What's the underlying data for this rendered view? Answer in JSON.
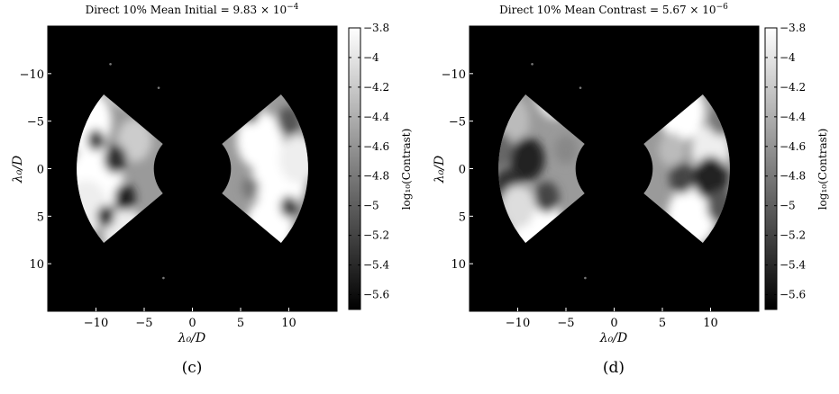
{
  "figure": {
    "panels": [
      {
        "id": "c",
        "title_prefix": "Direct 10% Mean Initial = 9.83 × 10",
        "title_exp": "−4",
        "caption": "(c)",
        "xlabel": "λ₀/D",
        "ylabel": "λ₀/D",
        "cblabel": "log₁₀(Contrast)"
      },
      {
        "id": "d",
        "title_prefix": "Direct 10% Mean Contrast = 5.67 × 10",
        "title_exp": "−6",
        "caption": "(d)",
        "xlabel": "λ₀/D",
        "ylabel": "λ₀/D",
        "cblabel": "log₁₀(Contrast)"
      }
    ]
  },
  "chart_data": [
    {
      "type": "heatmap",
      "title": "Direct 10% Mean Initial = 9.83 × 10^−4",
      "xlabel": "λ₀/D",
      "ylabel": "λ₀/D",
      "xlim": [
        -15,
        15
      ],
      "ylim": [
        15,
        -15
      ],
      "xticks": [
        -10,
        -5,
        0,
        5,
        10
      ],
      "xtick_labels": [
        "−10",
        "−5",
        "0",
        "5",
        "10"
      ],
      "yticks": [
        -10,
        -5,
        0,
        5,
        10
      ],
      "ytick_labels": [
        "−10",
        "−5",
        "0",
        "5",
        "10"
      ],
      "colorbar": {
        "label": "log₁₀(Contrast)",
        "range": [
          -5.7,
          -3.8
        ],
        "ticks": [
          -3.8,
          -4,
          -4.2,
          -4.4,
          -4.6,
          -4.8,
          -5,
          -5.2,
          -5.4,
          -5.6
        ],
        "tick_labels": [
          "−3.8",
          "−4",
          "−4.2",
          "−4.4",
          "−4.6",
          "−4.8",
          "−5",
          "−5.2",
          "−5.4",
          "−5.6"
        ]
      },
      "dark_hole": {
        "inner_radius": 4,
        "outer_radius": 12,
        "half_angle_deg": 40,
        "sides": [
          "left",
          "right"
        ]
      },
      "mean_contrast": 0.000983,
      "caption": "(c)"
    },
    {
      "type": "heatmap",
      "title": "Direct 10% Mean Contrast = 5.67 × 10^−6",
      "xlabel": "λ₀/D",
      "ylabel": "λ₀/D",
      "xlim": [
        -15,
        15
      ],
      "ylim": [
        15,
        -15
      ],
      "xticks": [
        -10,
        -5,
        0,
        5,
        10
      ],
      "xtick_labels": [
        "−10",
        "−5",
        "0",
        "5",
        "10"
      ],
      "yticks": [
        -10,
        -5,
        0,
        5,
        10
      ],
      "ytick_labels": [
        "−10",
        "−5",
        "0",
        "5",
        "10"
      ],
      "colorbar": {
        "label": "log₁₀(Contrast)",
        "range": [
          -5.7,
          -3.8
        ],
        "ticks": [
          -3.8,
          -4,
          -4.2,
          -4.4,
          -4.6,
          -4.8,
          -5,
          -5.2,
          -5.4,
          -5.6
        ],
        "tick_labels": [
          "−3.8",
          "−4",
          "−4.2",
          "−4.4",
          "−4.6",
          "−4.8",
          "−5",
          "−5.2",
          "−5.4",
          "−5.6"
        ]
      },
      "dark_hole": {
        "inner_radius": 4,
        "outer_radius": 12,
        "half_angle_deg": 40,
        "sides": [
          "left",
          "right"
        ]
      },
      "mean_contrast": 5.67e-06,
      "caption": "(d)"
    }
  ]
}
